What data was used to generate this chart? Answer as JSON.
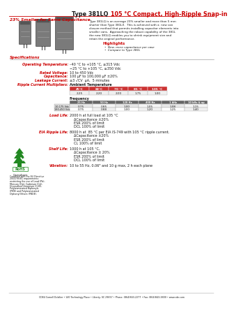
{
  "title_black": "Type 381LQ ",
  "title_red": "105 °C Compact, High-Ripple Snap-in",
  "subtitle": "23% Smaller for Same Capacitance",
  "bg_color": "#ffffff",
  "red_color": "#cc0000",
  "dark_color": "#1a1a1a",
  "description_lines": [
    "Type 381LQ is on average 23% smaller and more than 5 mm",
    "shorter than Type 381LX.  This is achieved with a  new can",
    "closure method that permits installing capacitor elements into",
    "smaller cans.  Approaching the robust capability of the 381L",
    "the new 381LQ enables you to shrink equipment size and",
    "retain the original performance."
  ],
  "highlights_title": "Highlights",
  "highlights": [
    "New, more capacitance per case",
    "Compare to Type 381L"
  ],
  "spec_title": "Specifications",
  "op_temp_label": "Operating Temperature:",
  "op_temp_val1": "–40 °C to +105 °C, ≤315 Vdc",
  "op_temp_val2": "−25 °C to +105 °C, ≥350 Vdc",
  "rated_v_label": "Rated Voltage:",
  "rated_v_val": "10 to 450 Vdc",
  "cap_label": "Capacitance:",
  "cap_val": "100 μF to 100,000 μF ±20%",
  "leak_label": "Leakage Current:",
  "leak_val": "≤3 √CV  μA,  5 minutes",
  "ripple_label": "Ripple Current Multipliers:",
  "amb_label": "Ambient Temperature",
  "amb_temp_headers": [
    "45°C",
    "60°C",
    "70 °C",
    "85 °C",
    "105 °C"
  ],
  "amb_temp_values": [
    "2.25",
    "2.20",
    "2.00",
    "1.75",
    "1.00"
  ],
  "freq_label": "Frequency",
  "freq_headers": [
    "25 Hz",
    "50 Hz",
    "120 Hz",
    "400 Hz",
    "1 kHz",
    "10 kHz & up"
  ],
  "freq_row1_label": "10-175 Vdc",
  "freq_row1": [
    "0.75",
    "0.85",
    "1.00",
    "1.05",
    "1.08",
    "1.15"
  ],
  "freq_row2_label": "180-450 Vdc",
  "freq_row2": [
    "0.75",
    "0.88",
    "1.00",
    "1.20",
    "1.25",
    "1.40"
  ],
  "load_label": "Load Life:",
  "load_lines": [
    "2000 h at full load at 105 °C",
    "    ΔCapacitance ±20%",
    "    ESR 200% of limit",
    "    DCL 100% of limit"
  ],
  "eia_label": "EIA Ripple Life:",
  "eia_lines": [
    "8000 h at  85 °C per EIA IS-749 with 105 °C ripple current.",
    "    ΔCapacitance ±20%",
    "    ESR 200% of limit",
    "    CL 100% of limit"
  ],
  "shelf_label": "Shelf Life:",
  "shelf_lines": [
    "1000 h at 105 °C,",
    "    ΔCapacitance ± 20%",
    "    ESR 200% of limit",
    "    DCL 100% of limit"
  ],
  "vib_label": "Vibration:",
  "vib_val": "10 to 55 Hz, 0.06\" and 10 g max, 2 h each plane",
  "comply_lines": [
    "Complies with the EU Directive",
    "2002/95/EC requirements",
    "restricting the use of Lead (Pb),",
    "Mercury (Hg), Cadmium (Cd),",
    "Hexavalent chromium (CrVI),",
    "Polybrominated Biphenyls",
    "(PBB) and Polybrominated",
    "Diphenyl Ethers (PBDE)."
  ],
  "footer": "CDE4 Cornell Dubilier • 140 Technology Place • Liberty, SC 29657 • Phone: (864)843-2277 • Fax: (864)843-3800 • www.cde.com"
}
